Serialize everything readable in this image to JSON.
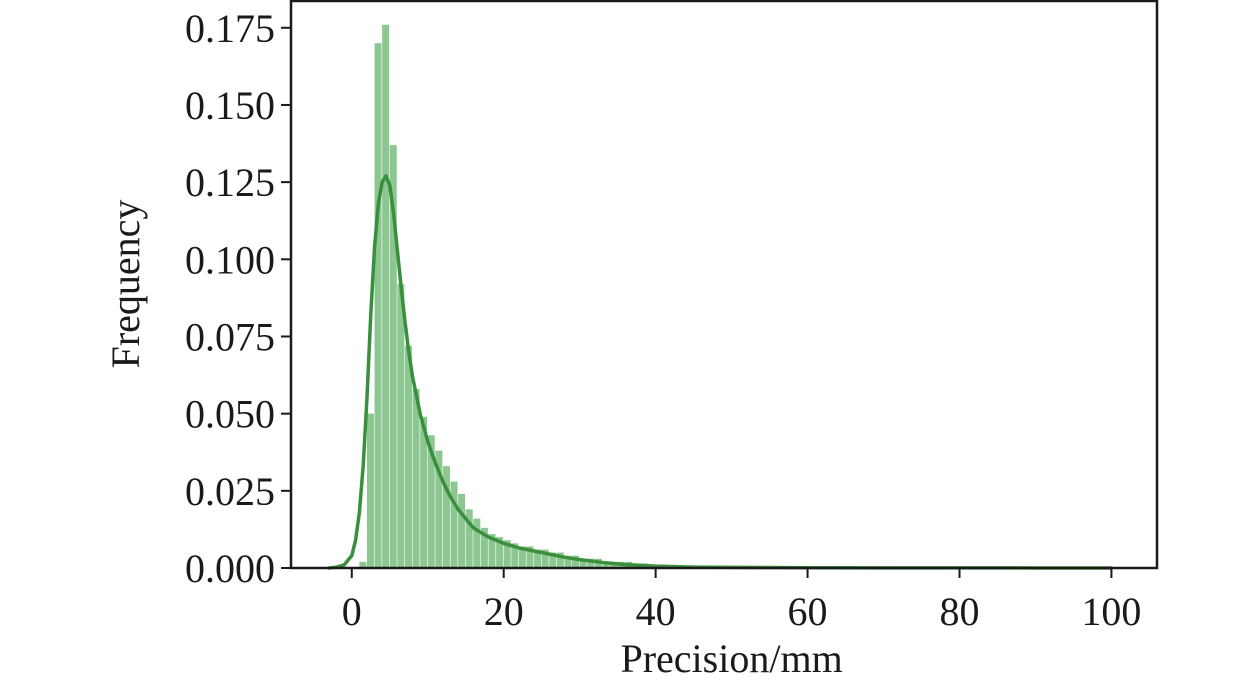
{
  "chart_data": {
    "type": "bar",
    "title": "",
    "xlabel": "Precision/mm",
    "ylabel": "Frequency",
    "xlim": [
      -8,
      106
    ],
    "ylim": [
      0,
      0.184
    ],
    "xticks": [
      0,
      20,
      40,
      60,
      80,
      100
    ],
    "xtick_labels": [
      "0",
      "20",
      "40",
      "60",
      "80",
      "100"
    ],
    "yticks": [
      0,
      0.025,
      0.05,
      0.075,
      0.1,
      0.125,
      0.15,
      0.175
    ],
    "ytick_labels": [
      "0.000",
      "0.025",
      "0.050",
      "0.075",
      "0.100",
      "0.125",
      "0.150",
      "0.175"
    ],
    "grid": false,
    "legend": false,
    "colors": {
      "bar": "#8cc690",
      "line": "#3a8f3e",
      "axis": "#1a1a1a"
    },
    "histogram": {
      "bin_width": 1.0,
      "bin_start": 1.0,
      "values": [
        0.002,
        0.05,
        0.17,
        0.176,
        0.137,
        0.092,
        0.072,
        0.058,
        0.049,
        0.043,
        0.038,
        0.033,
        0.028,
        0.024,
        0.019,
        0.016,
        0.013,
        0.011,
        0.01,
        0.009,
        0.008,
        0.007,
        0.007,
        0.006,
        0.006,
        0.005,
        0.005,
        0.004,
        0.004,
        0.003,
        0.003,
        0.003,
        0.002,
        0.002,
        0.002,
        0.002,
        0.0015,
        0.0015,
        0.001,
        0.001,
        0.001,
        0.001,
        0.0008,
        0.0008,
        0.0006,
        0.0006,
        0.0005,
        0.0005,
        0.0005,
        0.0004,
        0.0004,
        0.0004,
        0.0003,
        0.0003,
        0.0003,
        0.0003,
        0.0002,
        0.0002,
        0.0002,
        0.0002,
        0.0002,
        0.0002,
        0.0002,
        0.0002,
        0.0002,
        0.0002,
        0.0002,
        0.0002,
        0.0002,
        0.0002,
        0.0002,
        0.0002,
        0.0002,
        0.0002,
        0.0002,
        0.0002,
        0.0002,
        0.0002,
        0.0002,
        0.0002,
        0.0002,
        0.0002,
        0.0002,
        0.0002,
        0.0002,
        0.0002,
        0.0002,
        0.0002,
        0.0002,
        0.0002,
        0.0002,
        0.0002,
        0.0002,
        0.0002,
        0.0002,
        0.0002,
        0.0002,
        0.0002,
        0.0002,
        0.0002
      ]
    },
    "kde": {
      "x": [
        -3,
        -2,
        -1,
        0,
        0.5,
        1,
        1.5,
        2,
        2.5,
        3,
        3.5,
        4,
        4.5,
        5,
        5.5,
        6,
        6.5,
        7,
        7.5,
        8,
        9,
        10,
        11,
        12,
        13,
        14,
        15,
        16,
        18,
        20,
        22,
        24,
        26,
        28,
        30,
        33,
        36,
        40,
        45,
        50,
        60,
        70,
        80,
        90,
        100
      ],
      "y": [
        0.0,
        0.0003,
        0.001,
        0.004,
        0.009,
        0.018,
        0.033,
        0.055,
        0.082,
        0.104,
        0.118,
        0.125,
        0.127,
        0.124,
        0.115,
        0.103,
        0.091,
        0.08,
        0.07,
        0.062,
        0.05,
        0.041,
        0.034,
        0.028,
        0.023,
        0.019,
        0.016,
        0.013,
        0.01,
        0.008,
        0.0065,
        0.0055,
        0.0045,
        0.0035,
        0.0027,
        0.0018,
        0.0011,
        0.0006,
        0.0003,
        0.0002,
        0.0001,
        5e-05,
        3e-05,
        2e-05,
        1e-05
      ]
    }
  }
}
